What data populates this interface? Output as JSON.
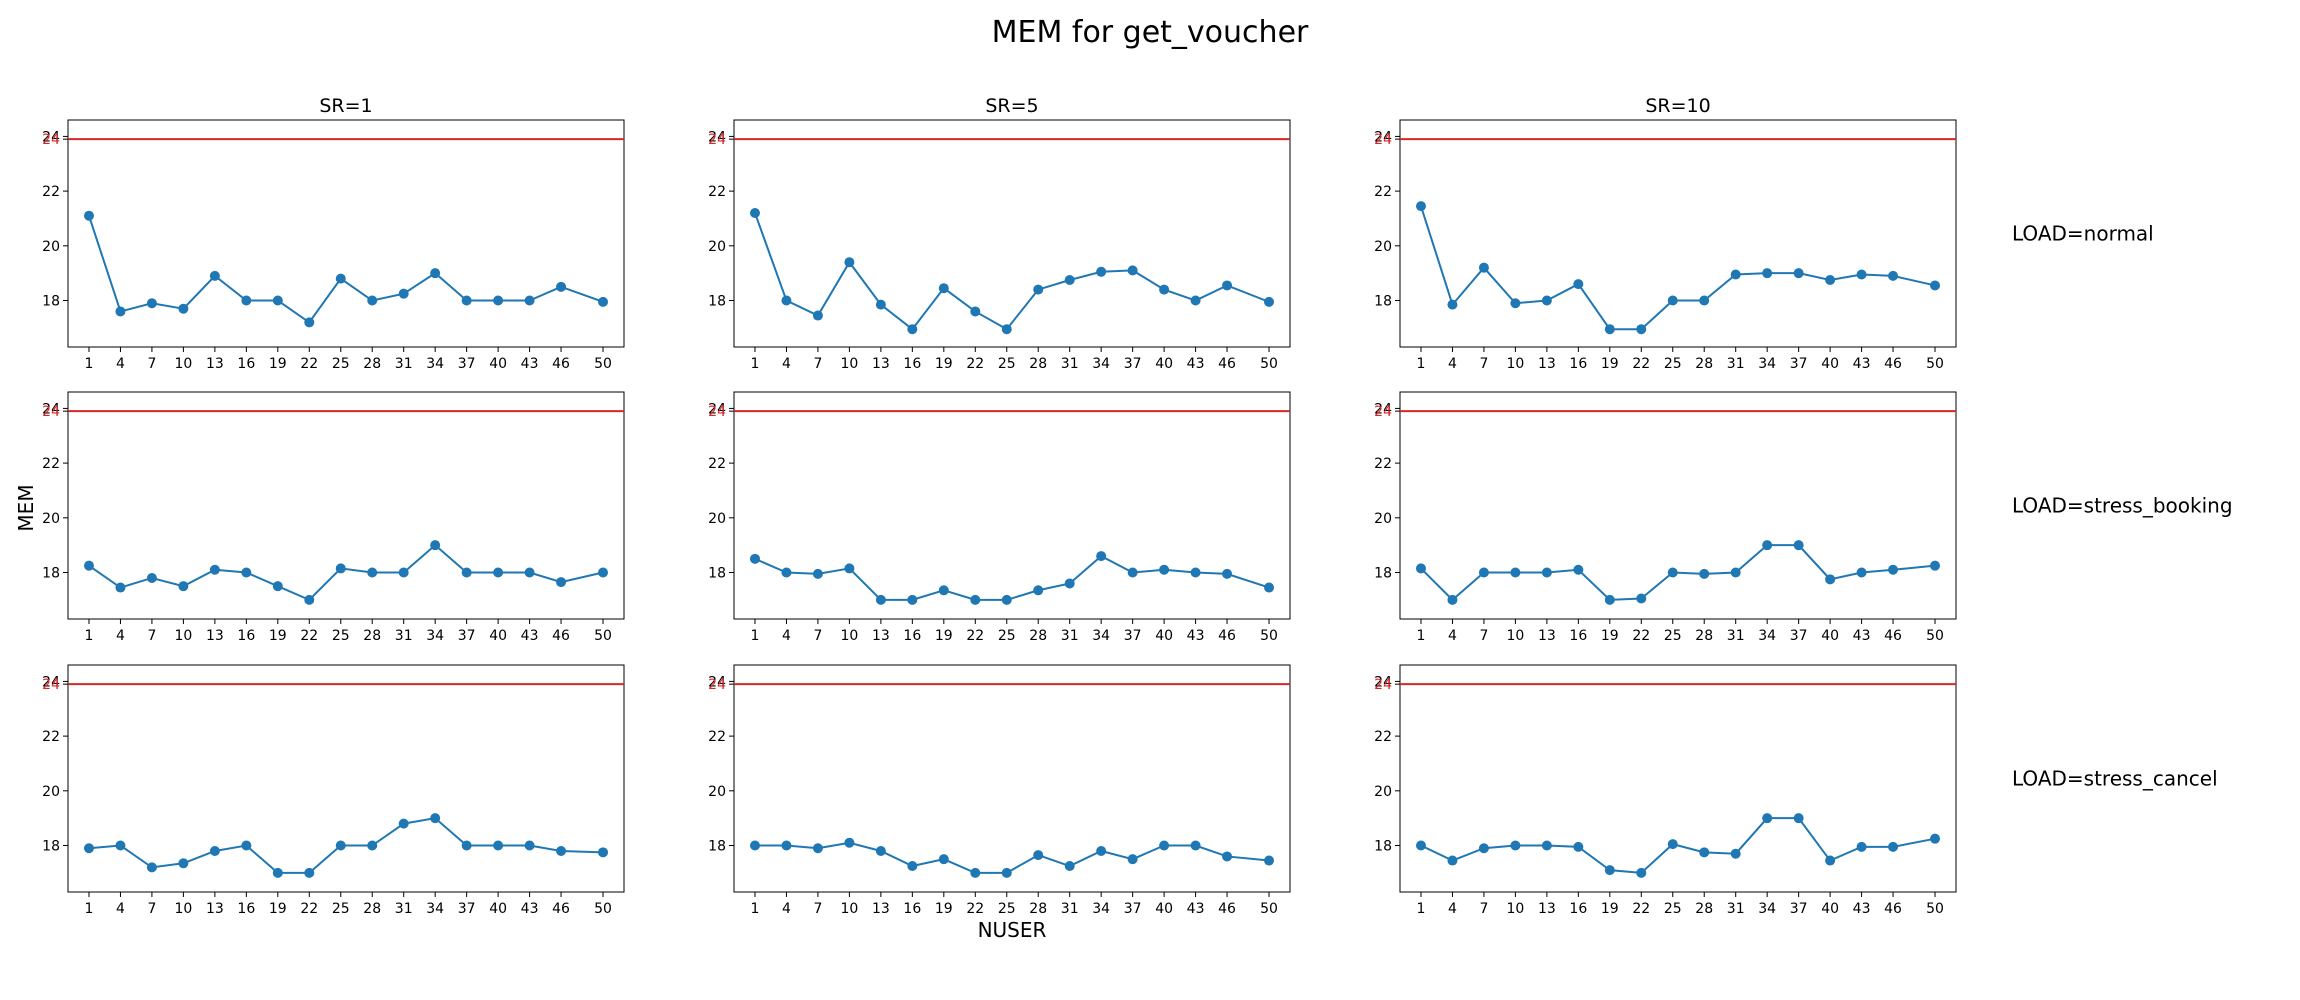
{
  "figure": {
    "title": "MEM for get_voucher",
    "xlabel": "NUSER",
    "ylabel": "MEM",
    "columns": [
      "SR=1",
      "SR=5",
      "SR=10"
    ],
    "rows": [
      "LOAD=normal",
      "LOAD=stress_booking",
      "LOAD=stress_cancel"
    ]
  },
  "chart_data": {
    "type": "line",
    "x": [
      1,
      4,
      7,
      10,
      13,
      16,
      19,
      22,
      25,
      28,
      31,
      34,
      37,
      40,
      43,
      46,
      50
    ],
    "xticks": [
      "1",
      "4",
      "7",
      "10",
      "13",
      "16",
      "19",
      "22",
      "25",
      "28",
      "31",
      "34",
      "37",
      "40",
      "43",
      "46",
      "50"
    ],
    "yticks": [
      18,
      20,
      22,
      24
    ],
    "ylim": [
      16.3,
      24.6
    ],
    "reference_line": {
      "y": 23.9,
      "label": "24",
      "color": "#d62728"
    },
    "series_color": "#1f77b4",
    "panels": [
      {
        "row": "LOAD=normal",
        "col": "SR=1",
        "values": [
          21.1,
          17.6,
          17.9,
          17.7,
          18.9,
          18.0,
          18.0,
          17.2,
          18.8,
          18.0,
          18.25,
          19.0,
          18.0,
          18.0,
          18.0,
          18.5,
          17.95
        ]
      },
      {
        "row": "LOAD=normal",
        "col": "SR=5",
        "values": [
          21.2,
          18.0,
          17.45,
          19.4,
          17.85,
          16.95,
          18.45,
          17.6,
          16.95,
          18.4,
          18.75,
          19.05,
          19.1,
          18.4,
          18.0,
          18.55,
          17.95
        ]
      },
      {
        "row": "LOAD=normal",
        "col": "SR=10",
        "values": [
          21.45,
          17.85,
          19.2,
          17.9,
          18.0,
          18.6,
          16.95,
          16.95,
          18.0,
          18.0,
          18.95,
          19.0,
          19.0,
          18.75,
          18.95,
          18.9,
          18.55
        ]
      },
      {
        "row": "LOAD=stress_booking",
        "col": "SR=1",
        "values": [
          18.25,
          17.45,
          17.8,
          17.5,
          18.1,
          18.0,
          17.5,
          17.0,
          18.15,
          18.0,
          18.0,
          19.0,
          18.0,
          18.0,
          18.0,
          17.65,
          18.0
        ]
      },
      {
        "row": "LOAD=stress_booking",
        "col": "SR=5",
        "values": [
          18.5,
          18.0,
          17.95,
          18.15,
          17.0,
          17.0,
          17.35,
          17.0,
          17.0,
          17.35,
          17.6,
          18.6,
          18.0,
          18.1,
          18.0,
          17.95,
          17.45
        ]
      },
      {
        "row": "LOAD=stress_booking",
        "col": "SR=10",
        "values": [
          18.15,
          17.0,
          18.0,
          18.0,
          18.0,
          18.1,
          17.0,
          17.05,
          18.0,
          17.95,
          18.0,
          19.0,
          19.0,
          17.75,
          18.0,
          18.1,
          18.25
        ]
      },
      {
        "row": "LOAD=stress_cancel",
        "col": "SR=1",
        "values": [
          17.9,
          18.0,
          17.2,
          17.35,
          17.8,
          18.0,
          17.0,
          17.0,
          18.0,
          18.0,
          18.8,
          19.0,
          18.0,
          18.0,
          18.0,
          17.8,
          17.75
        ]
      },
      {
        "row": "LOAD=stress_cancel",
        "col": "SR=5",
        "values": [
          18.0,
          18.0,
          17.9,
          18.1,
          17.8,
          17.25,
          17.5,
          17.0,
          17.0,
          17.65,
          17.25,
          17.8,
          17.5,
          18.0,
          18.0,
          17.6,
          17.45
        ]
      },
      {
        "row": "LOAD=stress_cancel",
        "col": "SR=10",
        "values": [
          18.0,
          17.45,
          17.9,
          18.0,
          18.0,
          17.95,
          17.1,
          17.0,
          18.05,
          17.75,
          17.7,
          19.0,
          19.0,
          17.45,
          17.95,
          17.95,
          18.25
        ]
      }
    ]
  }
}
